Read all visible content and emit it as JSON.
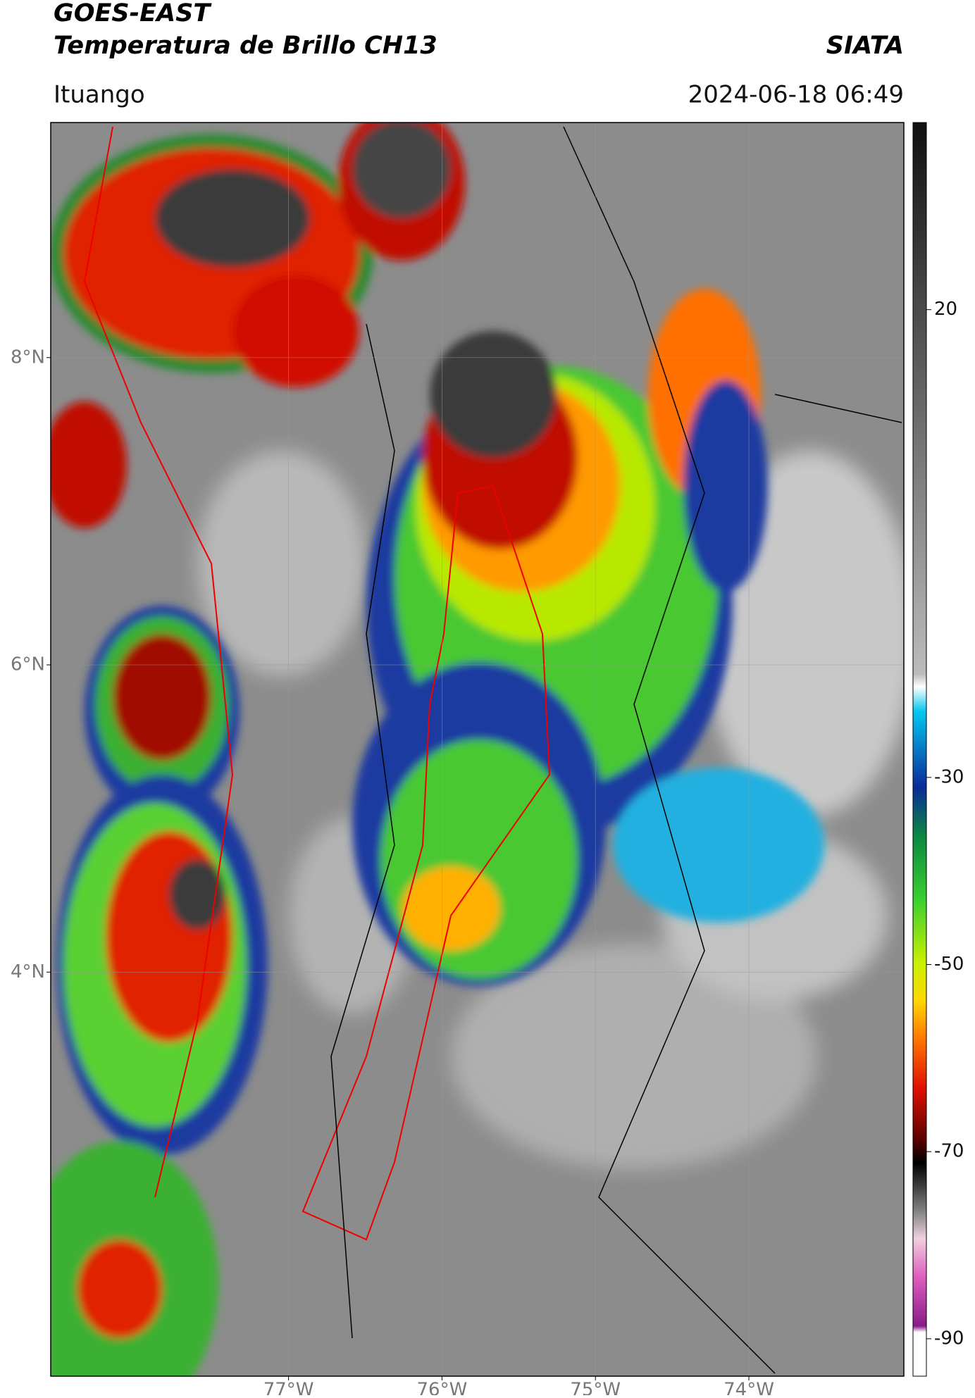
{
  "header": {
    "title": "GOES-EAST",
    "subtitle": "Temperatura de Brillo CH13",
    "source": "SIATA",
    "location": "Ituango",
    "datetime": "2024-06-18 06:49"
  },
  "map": {
    "xlim": [
      -78.55,
      -72.99
    ],
    "ylim": [
      1.37,
      9.53
    ],
    "xticks": [
      {
        "value": -77,
        "label": "77°W"
      },
      {
        "value": -76,
        "label": "76°W"
      },
      {
        "value": -75,
        "label": "75°W"
      },
      {
        "value": -74,
        "label": "74°W"
      }
    ],
    "yticks": [
      {
        "value": 8,
        "label": "8°N"
      },
      {
        "value": 6,
        "label": "6°N"
      },
      {
        "value": 4,
        "label": "4°N"
      }
    ],
    "grid": true
  },
  "colorbar": {
    "clim": [
      -94,
      40
    ],
    "ticks": [
      20,
      -30,
      -50,
      -70,
      -90
    ]
  }
}
